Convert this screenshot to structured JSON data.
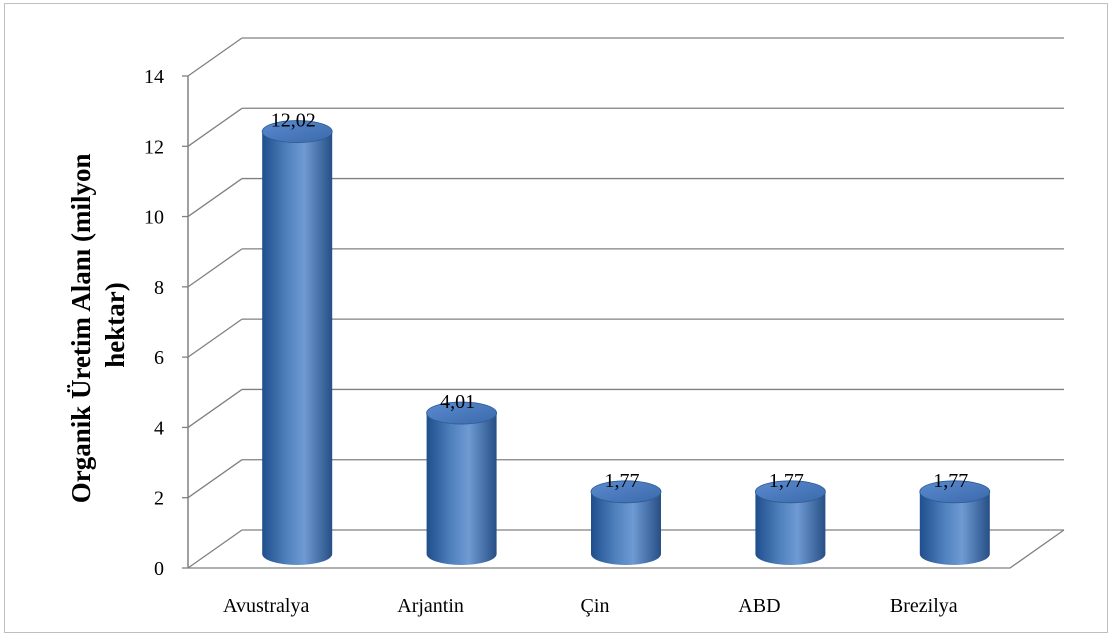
{
  "chart_data": {
    "type": "bar",
    "style": "3d-cylinder",
    "title": "",
    "xlabel": "",
    "ylabel_lines": [
      "Organik Üretim Alanı (milyon",
      "hektar)"
    ],
    "categories": [
      "Avustralya",
      "Arjantin",
      "Çin",
      "ABD",
      "Brezilya"
    ],
    "values": [
      12.02,
      4.01,
      1.77,
      1.77,
      1.77
    ],
    "data_labels": [
      "12,02",
      "4,01",
      "1,77",
      "1,77",
      "1,77"
    ],
    "ylim": [
      0,
      14
    ],
    "yticks": [
      0,
      2,
      4,
      6,
      8,
      10,
      12,
      14
    ],
    "grid": true,
    "legend": "none",
    "bar_color": "#4f81bd"
  }
}
